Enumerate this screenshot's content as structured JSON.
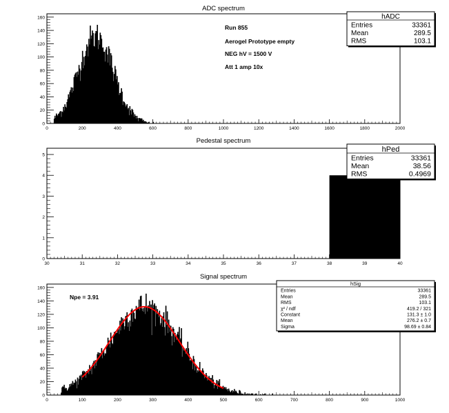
{
  "chart_data": [
    {
      "type": "bar",
      "title": "ADC spectrum",
      "xlim": [
        0,
        2000
      ],
      "ylim": [
        0,
        165
      ],
      "xticks": [
        0,
        200,
        400,
        600,
        800,
        1000,
        1200,
        1400,
        1600,
        1800,
        2000
      ],
      "yticks": [
        0,
        20,
        40,
        60,
        80,
        100,
        120,
        140,
        160
      ],
      "distribution": {
        "shape": "gaussian",
        "mean": 276,
        "sigma": 99,
        "peak": 131,
        "x_start": 40,
        "x_end": 800,
        "bin_width": 4,
        "noise": "poisson"
      },
      "annotations": [
        "Run  855",
        "Aerogel Prototype empty",
        "NEG hV = 1500 V",
        "Att 1 amp 10x"
      ],
      "stats": {
        "name": "hADC",
        "rows": [
          {
            "label": "Entries",
            "value": "33361"
          },
          {
            "label": "Mean",
            "value": "289.5"
          },
          {
            "label": "RMS",
            "value": "103.1"
          }
        ]
      }
    },
    {
      "type": "bar",
      "title": "Pedestal spectrum",
      "xlim": [
        30,
        40
      ],
      "ylim": [
        0,
        5.3
      ],
      "xticks": [
        30,
        31,
        32,
        33,
        34,
        35,
        36,
        37,
        38,
        39,
        40
      ],
      "yticks": [
        0,
        1,
        2,
        3,
        4,
        5
      ],
      "bars": [
        {
          "x0": 38,
          "x1": 40,
          "value": 4
        }
      ],
      "stats": {
        "name": "hPed",
        "rows": [
          {
            "label": "Entries",
            "value": "33361"
          },
          {
            "label": "Mean",
            "value": "38.56"
          },
          {
            "label": "RMS",
            "value": "0.4969"
          }
        ]
      }
    },
    {
      "type": "bar",
      "title": "Signal spectrum",
      "xlim": [
        0,
        1000
      ],
      "ylim": [
        0,
        165
      ],
      "xticks": [
        0,
        100,
        200,
        300,
        400,
        500,
        600,
        700,
        800,
        900,
        1000
      ],
      "yticks": [
        0,
        20,
        40,
        60,
        80,
        100,
        120,
        140,
        160
      ],
      "distribution": {
        "shape": "gaussian",
        "mean": 276,
        "sigma": 99,
        "peak": 131,
        "x_start": 40,
        "x_end": 820,
        "bin_width": 2,
        "noise": "poisson"
      },
      "fit": {
        "type": "gaus",
        "constant": 131.3,
        "mean": 276.2,
        "sigma": 98.69,
        "x_range": [
          100,
          500
        ],
        "color": "#ff0000"
      },
      "annotation": "Npe = 3.91",
      "stats": {
        "name": "hSig",
        "rows": [
          {
            "label": "Entries",
            "value": "33361"
          },
          {
            "label": "Mean",
            "value": "289.5"
          },
          {
            "label": "RMS",
            "value": "103.1"
          },
          {
            "label": "χ² / ndf",
            "value": "419.2 / 321"
          },
          {
            "label": "Constant",
            "value": "131.3 ± 1.0"
          },
          {
            "label": "Mean",
            "value": "276.2 ± 0.7"
          },
          {
            "label": "Sigma",
            "value": "98.69 ± 0.84"
          }
        ]
      }
    }
  ]
}
